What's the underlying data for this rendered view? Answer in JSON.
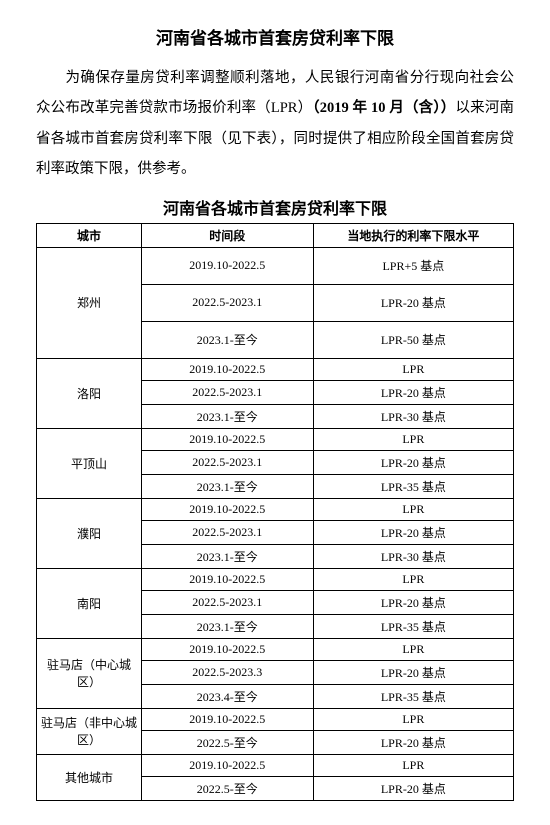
{
  "title": "河南省各城市首套房贷利率下限",
  "intro_parts": {
    "p1": "为确保存量房贷利率调整顺利落地，人民银行河南省分行现向社会公众公布改革完善贷款市场报价利率（LPR）",
    "p2_bold": "（2019 年 10 月（含））",
    "p3": "以来河南省各城市首套房贷利率下限（见下表），同时提供了相应阶段全国首套房贷利率政策下限，供参考。"
  },
  "table_title": "河南省各城市首套房贷利率下限",
  "columns": [
    "城市",
    "时间段",
    "当地执行的利率下限水平"
  ],
  "groups": [
    {
      "city": "郑州",
      "tall": true,
      "rows": [
        {
          "period": "2019.10-2022.5",
          "rate": "LPR+5 基点"
        },
        {
          "period": "2022.5-2023.1",
          "rate": "LPR-20 基点"
        },
        {
          "period": "2023.1-至今",
          "rate": "LPR-50 基点"
        }
      ]
    },
    {
      "city": "洛阳",
      "rows": [
        {
          "period": "2019.10-2022.5",
          "rate": "LPR"
        },
        {
          "period": "2022.5-2023.1",
          "rate": "LPR-20 基点"
        },
        {
          "period": "2023.1-至今",
          "rate": "LPR-30 基点"
        }
      ]
    },
    {
      "city": "平顶山",
      "rows": [
        {
          "period": "2019.10-2022.5",
          "rate": "LPR"
        },
        {
          "period": "2022.5-2023.1",
          "rate": "LPR-20 基点"
        },
        {
          "period": "2023.1-至今",
          "rate": "LPR-35 基点"
        }
      ]
    },
    {
      "city": "濮阳",
      "rows": [
        {
          "period": "2019.10-2022.5",
          "rate": "LPR"
        },
        {
          "period": "2022.5-2023.1",
          "rate": "LPR-20 基点"
        },
        {
          "period": "2023.1-至今",
          "rate": "LPR-30 基点"
        }
      ]
    },
    {
      "city": "南阳",
      "rows": [
        {
          "period": "2019.10-2022.5",
          "rate": "LPR"
        },
        {
          "period": "2022.5-2023.1",
          "rate": "LPR-20 基点"
        },
        {
          "period": "2023.1-至今",
          "rate": "LPR-35 基点"
        }
      ]
    },
    {
      "city": "驻马店（中心城区）",
      "rows": [
        {
          "period": "2019.10-2022.5",
          "rate": "LPR"
        },
        {
          "period": "2022.5-2023.3",
          "rate": "LPR-20 基点"
        },
        {
          "period": "2023.4-至今",
          "rate": "LPR-35 基点"
        }
      ]
    },
    {
      "city": "驻马店（非中心城区）",
      "rows": [
        {
          "period": "2019.10-2022.5",
          "rate": "LPR"
        },
        {
          "period": "2022.5-至今",
          "rate": "LPR-20 基点"
        }
      ]
    },
    {
      "city": "其他城市",
      "rows": [
        {
          "period": "2019.10-2022.5",
          "rate": "LPR"
        },
        {
          "period": "2022.5-至今",
          "rate": "LPR-20 基点"
        }
      ]
    }
  ]
}
